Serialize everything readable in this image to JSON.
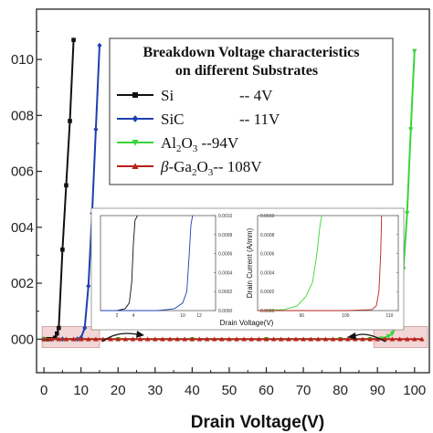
{
  "chart_data": {
    "type": "line",
    "xlabel": "Drain Voltage(V)",
    "xlim": [
      -2,
      104
    ],
    "ylim": [
      -0.0012,
      0.0118
    ],
    "x_ticks": [
      "0",
      "10",
      "20",
      "30",
      "40",
      "50",
      "60",
      "70",
      "80",
      "90",
      "100"
    ],
    "y_ticks": [
      {
        "value": 0.0,
        "label": "000"
      },
      {
        "value": 0.002,
        "label": "002"
      },
      {
        "value": 0.004,
        "label": "004"
      },
      {
        "value": 0.006,
        "label": "006"
      },
      {
        "value": 0.008,
        "label": "008"
      },
      {
        "value": 0.01,
        "label": "010"
      }
    ],
    "legend": {
      "title_line1": "Breakdown Voltage characteristics",
      "title_line2": "on different Substrates",
      "placement": "top-right",
      "entries": [
        {
          "name": "Si",
          "value": "-- 4V"
        },
        {
          "name": "SiC",
          "value": "-- 11V"
        },
        {
          "name": "Al",
          "sub1": "2",
          "mid": "O",
          "sub2": "3",
          "value": "--94V"
        },
        {
          "name": "β-Ga",
          "sub1": "2",
          "mid": "O",
          "sub2": "3",
          "value": "-- 108V"
        }
      ]
    },
    "series": [
      {
        "color": "#111111",
        "marker": "square",
        "x": [
          0,
          1,
          2,
          3,
          3.5,
          4,
          5,
          6,
          7,
          8
        ],
        "y": [
          0,
          0,
          0,
          5e-05,
          0.0002,
          0.0004,
          0.0032,
          0.0055,
          0.0078,
          0.0107
        ]
      },
      {
        "color": "#1f3fb0",
        "marker": "diamond",
        "x": [
          0,
          5,
          9,
          10,
          11,
          12,
          13,
          14,
          15
        ],
        "y": [
          0,
          0,
          0,
          5e-05,
          0.0004,
          0.0019,
          0.0045,
          0.0075,
          0.0105
        ]
      },
      {
        "color": "#39d43a",
        "marker": "triangle-down",
        "x": [
          0,
          20,
          40,
          60,
          80,
          88,
          91,
          93,
          94,
          95,
          96,
          97,
          98,
          99,
          100
        ],
        "y": [
          0,
          0,
          0,
          0,
          0,
          0,
          2e-05,
          0.0001,
          0.0002,
          0.0005,
          0.0012,
          0.0025,
          0.0045,
          0.0075,
          0.0103
        ]
      },
      {
        "color": "#b8221b",
        "marker": "triangle-up",
        "x": [
          0,
          2,
          4,
          6,
          8,
          10,
          12,
          14,
          16,
          18,
          20,
          22,
          24,
          26,
          28,
          30,
          32,
          34,
          36,
          38,
          40,
          42,
          44,
          46,
          48,
          50,
          52,
          54,
          56,
          58,
          60,
          62,
          64,
          66,
          68,
          70,
          72,
          74,
          76,
          78,
          80,
          82,
          84,
          86,
          88,
          90,
          92,
          94,
          96,
          98,
          100,
          102
        ],
        "y": [
          0,
          0,
          0,
          0,
          0,
          0,
          0,
          0,
          0,
          0,
          0,
          0,
          0,
          0,
          0,
          0,
          0,
          0,
          0,
          0,
          0,
          0,
          0,
          0,
          0,
          0,
          0,
          0,
          0,
          0,
          0,
          0,
          0,
          0,
          0,
          0,
          0,
          0,
          0,
          0,
          0,
          0,
          0,
          0,
          0,
          0,
          0,
          0,
          0,
          0,
          0,
          0
        ]
      }
    ],
    "insets": [
      {
        "ylabel": "",
        "xlim": [
          0,
          14
        ],
        "ylim": [
          0,
          0.001
        ],
        "x_ticks": [
          {
            "v": 2,
            "label": "2"
          },
          {
            "v": 4,
            "label": "4"
          },
          {
            "v": 10,
            "label": "10"
          },
          {
            "v": 12,
            "label": "12"
          }
        ],
        "y_ticks": [
          {
            "v": 0.0,
            "label": "0.0000"
          },
          {
            "v": 0.0002,
            "label": "0.0002"
          },
          {
            "v": 0.0004,
            "label": "0.0004"
          },
          {
            "v": 0.0006,
            "label": "0.0006"
          },
          {
            "v": 0.0008,
            "label": "0.0008"
          },
          {
            "v": 0.001,
            "label": "0.0010"
          }
        ],
        "curves": [
          {
            "color": "#111111",
            "x": [
              0,
              2,
              3,
              3.5,
              3.8,
              4,
              4.2,
              4.5
            ],
            "y": [
              0,
              0,
              2e-05,
              8e-05,
              0.0003,
              0.0007,
              0.00095,
              0.001
            ]
          },
          {
            "color": "#1f3fb0",
            "x": [
              0,
              7,
              9,
              10,
              10.5,
              10.8,
              11,
              11.2
            ],
            "y": [
              0,
              0,
              2e-05,
              8e-05,
              0.0002,
              0.0006,
              0.0009,
              0.001
            ]
          }
        ]
      },
      {
        "ylabel": "Drain Current (A/mm)",
        "xlabel": "Drain Voltage(V)",
        "xlim": [
          80,
          112
        ],
        "ylim": [
          0,
          0.001
        ],
        "x_ticks": [
          {
            "v": 90,
            "label": "90"
          },
          {
            "v": 100,
            "label": "100"
          },
          {
            "v": 110,
            "label": "110"
          }
        ],
        "y_ticks": [
          {
            "v": 0.0,
            "label": "0.0000"
          },
          {
            "v": 0.0002,
            "label": "0.0002"
          },
          {
            "v": 0.0004,
            "label": "0.0004"
          },
          {
            "v": 0.0006,
            "label": "0.0006"
          },
          {
            "v": 0.0008,
            "label": "0.0008"
          },
          {
            "v": 0.001,
            "label": "0.0010"
          }
        ],
        "curves": [
          {
            "color": "#39d43a",
            "x": [
              80,
              86,
              89,
              91,
              92.5,
              93.5,
              94.2,
              94.6
            ],
            "y": [
              0,
              1e-05,
              5e-05,
              0.00015,
              0.0003,
              0.0006,
              0.0009,
              0.001
            ]
          },
          {
            "color": "#b8221b",
            "x": [
              80,
              100,
              106,
              107,
              107.6,
              108,
              108.2
            ],
            "y": [
              0,
              0,
              1e-05,
              5e-05,
              0.0002,
              0.0006,
              0.001
            ]
          }
        ]
      }
    ]
  }
}
